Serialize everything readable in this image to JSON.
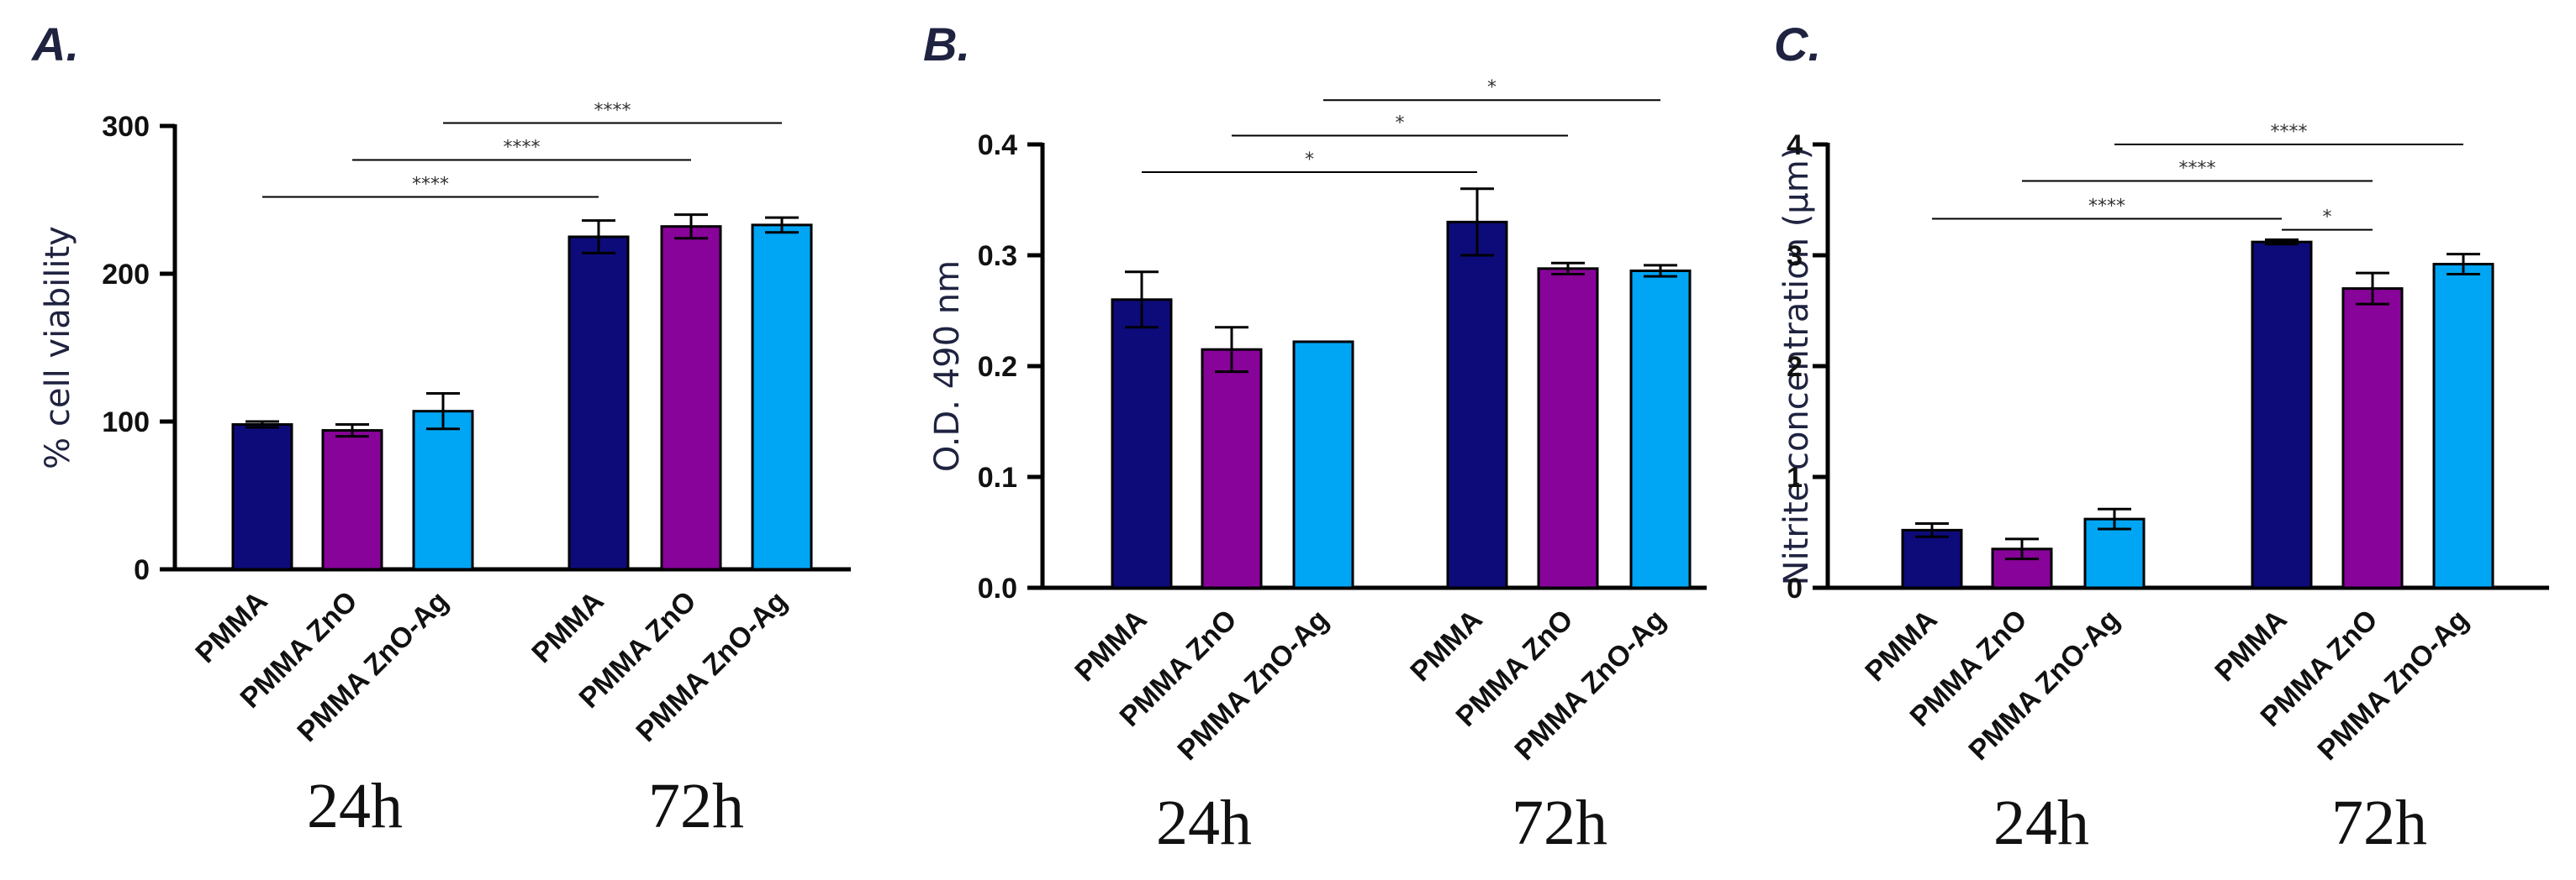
{
  "colors": {
    "pmma": "#0d0b7a",
    "pmma_zno": "#880399",
    "pmma_zno_ag": "#00a5f4",
    "axis": "#000000",
    "text": "#1f2340"
  },
  "chart_data": [
    {
      "type": "bar",
      "panel": "A.",
      "title": "",
      "xlabel": "",
      "ylabel": "% cell viability",
      "ylim": [
        0,
        300
      ],
      "yticks": [
        0,
        100,
        200,
        300
      ],
      "groups": [
        "24h",
        "72h"
      ],
      "categories": [
        "PMMA",
        "PMMA ZnO",
        "PMMA ZnO-Ag",
        "PMMA",
        "PMMA ZnO",
        "PMMA ZnO-Ag"
      ],
      "values": [
        98,
        94,
        107,
        225,
        232,
        233
      ],
      "errors": [
        2,
        4,
        12,
        11,
        8,
        5
      ],
      "color_keys": [
        "pmma",
        "pmma_zno",
        "pmma_zno_ag",
        "pmma",
        "pmma_zno",
        "pmma_zno_ag"
      ],
      "significance": [
        {
          "from": 0,
          "to": 3,
          "label": "****",
          "y": 252
        },
        {
          "from": 1,
          "to": 4,
          "label": "****",
          "y": 277
        },
        {
          "from": 2,
          "to": 5,
          "label": "****",
          "y": 302
        }
      ]
    },
    {
      "type": "bar",
      "panel": "B.",
      "title": "",
      "xlabel": "",
      "ylabel": "O.D. 490 nm",
      "ylim": [
        0,
        0.4
      ],
      "yticks": [
        "0.0",
        "0.1",
        "0.2",
        "0.3",
        "0.4"
      ],
      "groups": [
        "24h",
        "72h"
      ],
      "categories": [
        "PMMA",
        "PMMA ZnO",
        "PMMA ZnO-Ag",
        "PMMA",
        "PMMA ZnO",
        "PMMA ZnO-Ag"
      ],
      "values": [
        0.26,
        0.215,
        0.222,
        0.33,
        0.288,
        0.286
      ],
      "errors": [
        0.025,
        0.02,
        0,
        0.03,
        0.005,
        0.005
      ],
      "color_keys": [
        "pmma",
        "pmma_zno",
        "pmma_zno_ag",
        "pmma",
        "pmma_zno",
        "pmma_zno_ag"
      ],
      "significance": [
        {
          "from": 0,
          "to": 3,
          "label": "*",
          "y": 0.375
        },
        {
          "from": 1,
          "to": 4,
          "label": "*",
          "y": 0.408
        },
        {
          "from": 2,
          "to": 5,
          "label": "*",
          "y": 0.44
        }
      ]
    },
    {
      "type": "bar",
      "panel": "C.",
      "title": "",
      "xlabel": "",
      "ylabel": "Nitrite concentration (μm)",
      "ylim": [
        0,
        4
      ],
      "yticks": [
        0,
        1,
        2,
        3,
        4
      ],
      "groups": [
        "24h",
        "72h"
      ],
      "categories": [
        "PMMA",
        "PMMA ZnO",
        "PMMA ZnO-Ag",
        "PMMA",
        "PMMA ZnO",
        "PMMA ZnO-Ag"
      ],
      "values": [
        0.52,
        0.35,
        0.62,
        3.12,
        2.7,
        2.92
      ],
      "errors": [
        0.06,
        0.09,
        0.09,
        0.02,
        0.14,
        0.09
      ],
      "color_keys": [
        "pmma",
        "pmma_zno",
        "pmma_zno_ag",
        "pmma",
        "pmma_zno",
        "pmma_zno_ag"
      ],
      "significance": [
        {
          "from": 3,
          "to": 4,
          "label": "*",
          "y": 3.23
        },
        {
          "from": 0,
          "to": 3,
          "label": "****",
          "y": 3.33
        },
        {
          "from": 1,
          "to": 4,
          "label": "****",
          "y": 3.67
        },
        {
          "from": 2,
          "to": 5,
          "label": "****",
          "y": 4.0
        }
      ]
    }
  ]
}
